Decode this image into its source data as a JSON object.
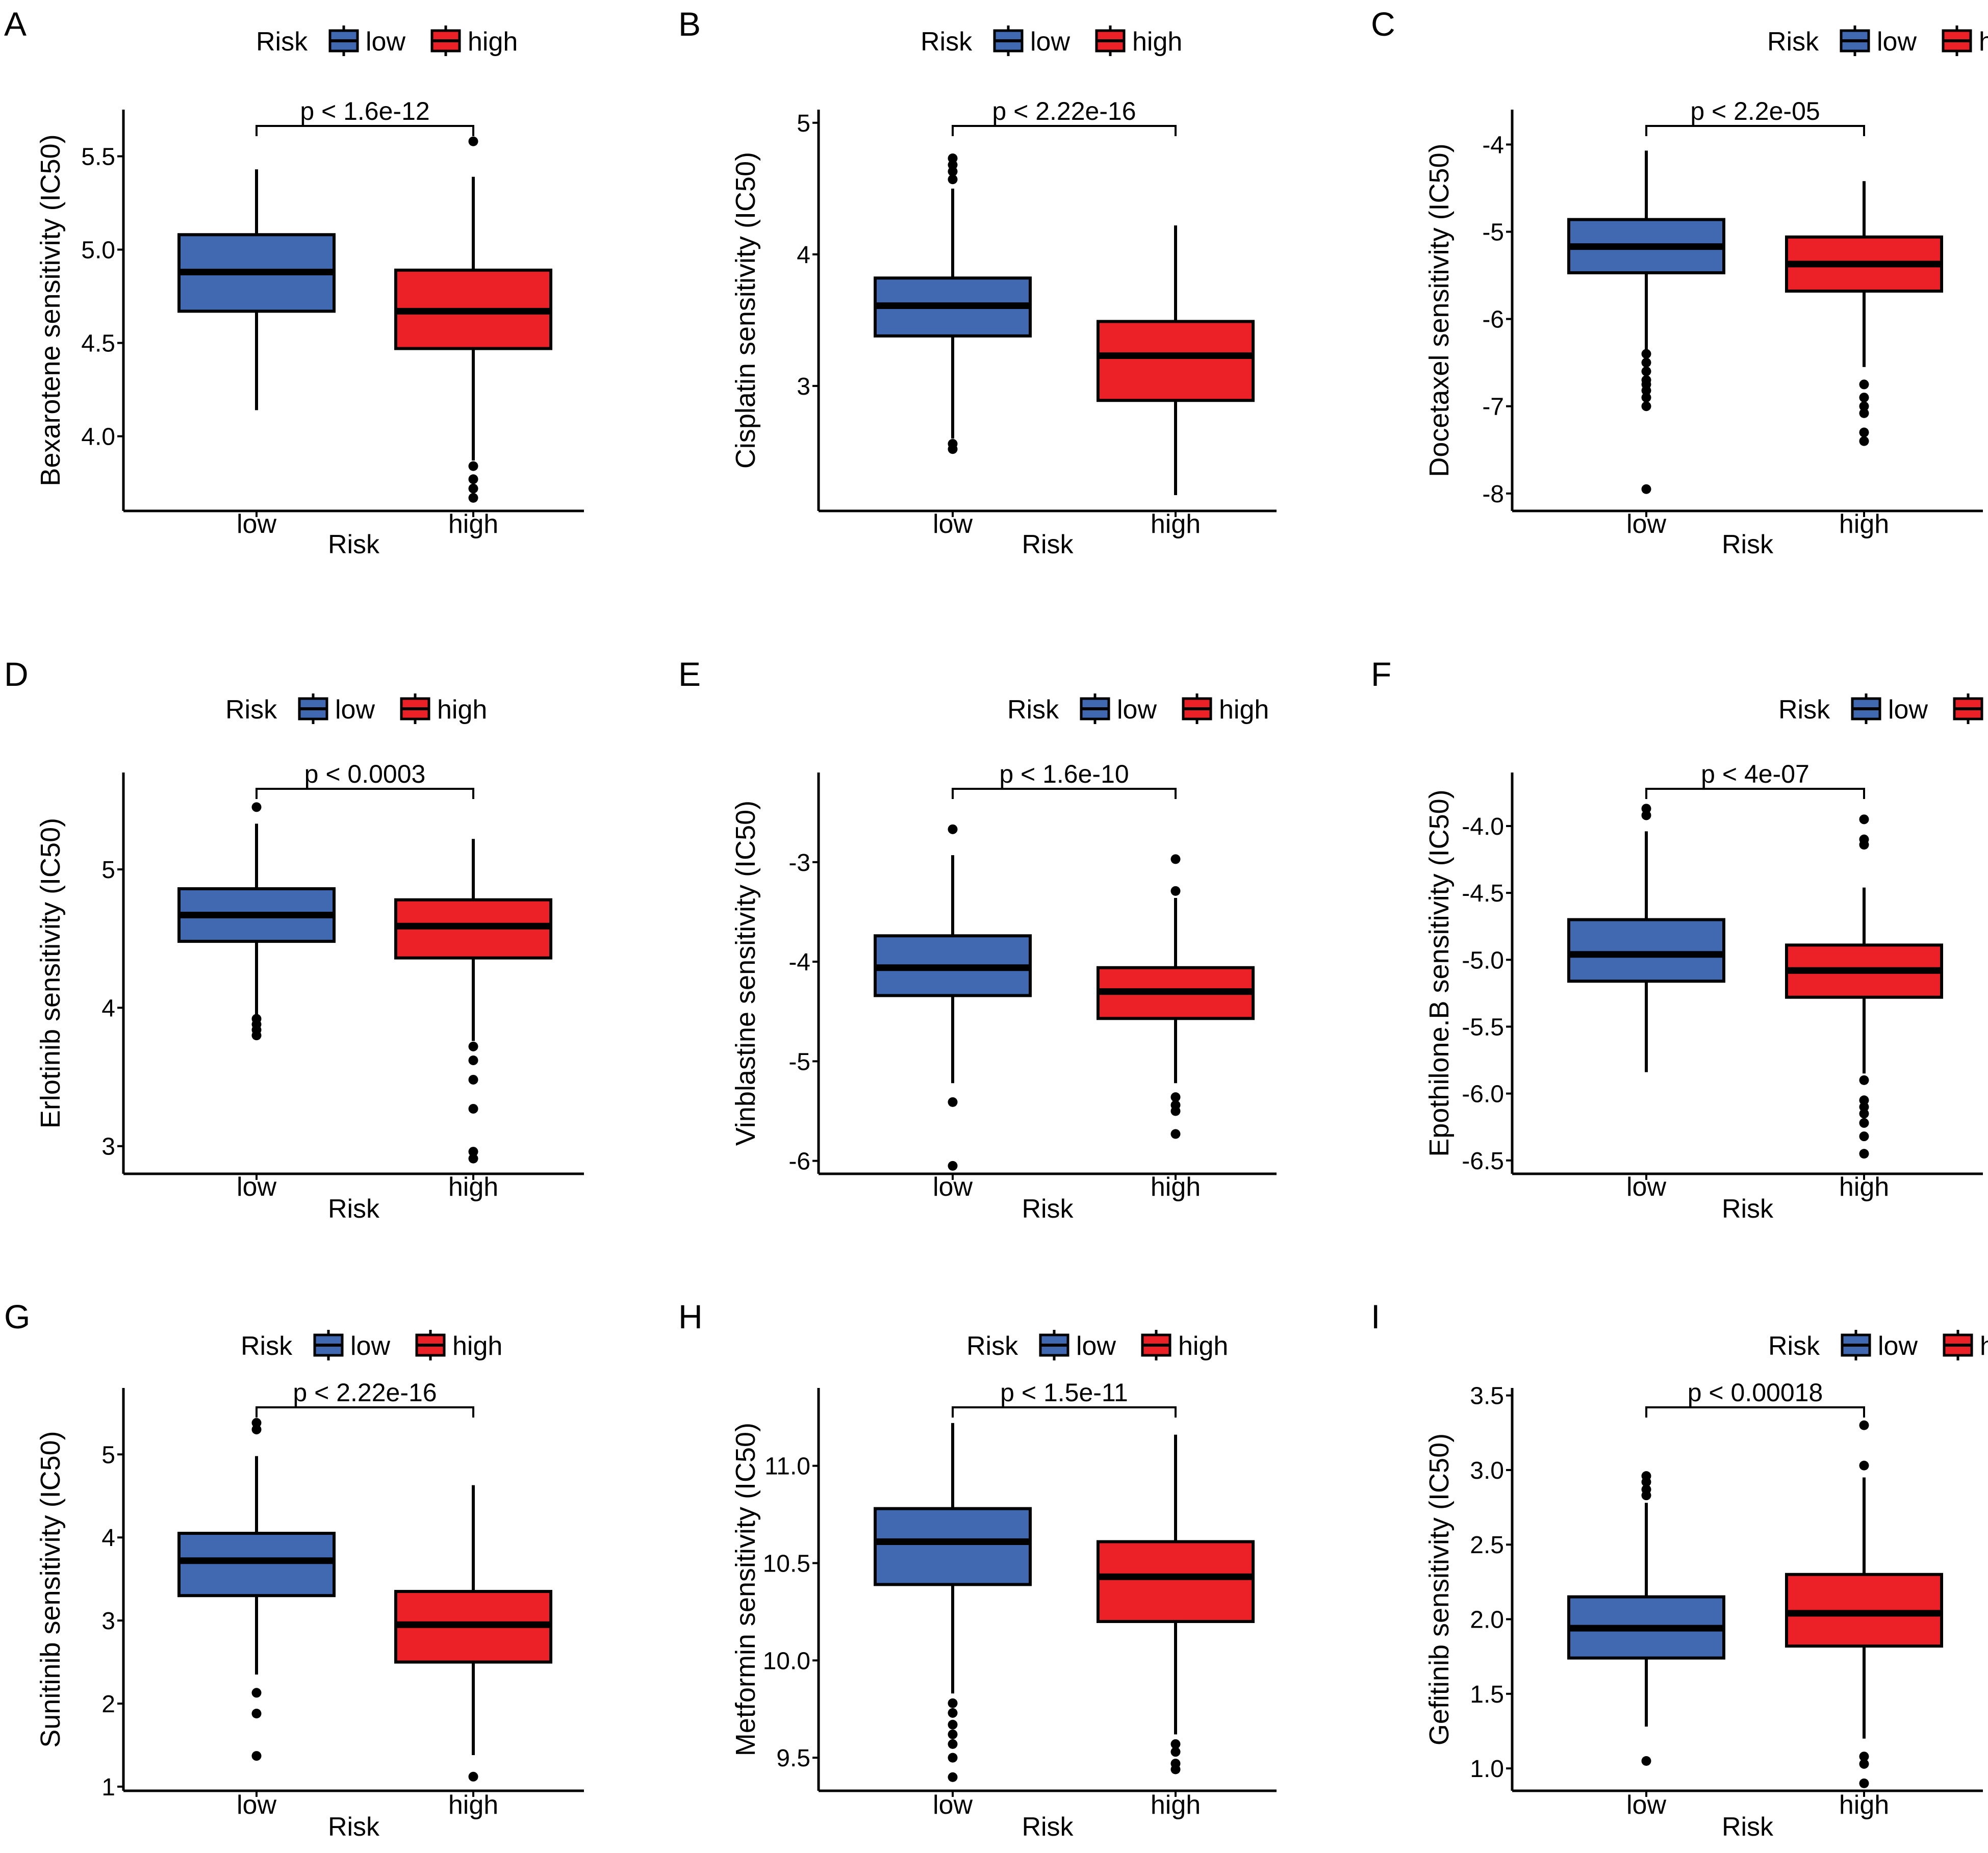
{
  "figure": {
    "background": "#ffffff"
  },
  "colors": {
    "low": "#4169b1",
    "high": "#ec2027",
    "axis": "#000000",
    "outlier": "#000000"
  },
  "legend": {
    "title": "Risk",
    "low_label": "low",
    "high_label": "high",
    "position": "top"
  },
  "chart_data": [
    {
      "panel": "A",
      "type": "boxplot",
      "ylabel": "Bexarotene sensitivity (IC50)",
      "xlabel": "Risk",
      "categories": [
        "low",
        "high"
      ],
      "ylim": [
        3.6,
        5.75
      ],
      "yticks": [
        4.0,
        4.5,
        5.0,
        5.5
      ],
      "ytick_labels": [
        "4.0",
        "4.5",
        "5.0",
        "5.5"
      ],
      "annotation": "p < 1.6e-12",
      "boxes": [
        {
          "category": "low",
          "whisker_low": 4.14,
          "q1": 4.67,
          "median": 4.88,
          "q3": 5.08,
          "whisker_high": 5.43,
          "outliers": []
        },
        {
          "category": "high",
          "whisker_low": 3.87,
          "q1": 4.47,
          "median": 4.67,
          "q3": 4.89,
          "whisker_high": 5.39,
          "outliers": [
            5.58,
            3.84,
            3.77,
            3.72,
            3.67
          ]
        }
      ]
    },
    {
      "panel": "B",
      "type": "boxplot",
      "ylabel": "Cisplatin sensitivity (IC50)",
      "xlabel": "Risk",
      "categories": [
        "low",
        "high"
      ],
      "ylim": [
        2.05,
        5.1
      ],
      "yticks": [
        3,
        4,
        5
      ],
      "ytick_labels": [
        "3",
        "4",
        "5"
      ],
      "annotation": "p < 2.22e-16",
      "boxes": [
        {
          "category": "low",
          "whisker_low": 2.6,
          "q1": 3.38,
          "median": 3.61,
          "q3": 3.82,
          "whisker_high": 4.5,
          "outliers": [
            4.73,
            4.68,
            4.63,
            4.57,
            2.56,
            2.52
          ]
        },
        {
          "category": "high",
          "whisker_low": 2.17,
          "q1": 2.89,
          "median": 3.23,
          "q3": 3.49,
          "whisker_high": 4.22,
          "outliers": []
        }
      ]
    },
    {
      "panel": "C",
      "type": "boxplot",
      "ylabel": "Docetaxel sensitivity (IC50)",
      "xlabel": "Risk",
      "categories": [
        "low",
        "high"
      ],
      "ylim": [
        -8.2,
        -3.6
      ],
      "yticks": [
        -8,
        -7,
        -6,
        -5,
        -4
      ],
      "ytick_labels": [
        "-8",
        "-7",
        "-6",
        "-5",
        "-4"
      ],
      "annotation": "p < 2.2e-05",
      "boxes": [
        {
          "category": "low",
          "whisker_low": -6.35,
          "q1": -5.47,
          "median": -5.17,
          "q3": -4.86,
          "whisker_high": -4.07,
          "outliers": [
            -6.4,
            -6.5,
            -6.6,
            -6.7,
            -6.75,
            -6.82,
            -6.9,
            -7.0,
            -7.95
          ]
        },
        {
          "category": "high",
          "whisker_low": -6.55,
          "q1": -5.68,
          "median": -5.37,
          "q3": -5.06,
          "whisker_high": -4.42,
          "outliers": [
            -6.75,
            -6.9,
            -7.0,
            -7.08,
            -7.3,
            -7.4
          ]
        }
      ]
    },
    {
      "panel": "D",
      "type": "boxplot",
      "ylabel": "Erlotinib sensitivity (IC50)",
      "xlabel": "Risk",
      "categories": [
        "low",
        "high"
      ],
      "ylim": [
        2.8,
        5.7
      ],
      "yticks": [
        3,
        4,
        5
      ],
      "ytick_labels": [
        "3",
        "4",
        "5"
      ],
      "annotation": "p < 0.0003",
      "boxes": [
        {
          "category": "low",
          "whisker_low": 3.95,
          "q1": 4.48,
          "median": 4.67,
          "q3": 4.86,
          "whisker_high": 5.33,
          "outliers": [
            5.45,
            3.92,
            3.88,
            3.84,
            3.8
          ]
        },
        {
          "category": "high",
          "whisker_low": 3.76,
          "q1": 4.36,
          "median": 4.59,
          "q3": 4.78,
          "whisker_high": 5.22,
          "outliers": [
            3.72,
            3.62,
            3.48,
            3.27,
            2.96,
            2.91
          ]
        }
      ]
    },
    {
      "panel": "E",
      "type": "boxplot",
      "ylabel": "Vinblastine sensitivity (IC50)",
      "xlabel": "Risk",
      "categories": [
        "low",
        "high"
      ],
      "ylim": [
        -6.13,
        -2.1
      ],
      "yticks": [
        -6,
        -5,
        -4,
        -3
      ],
      "ytick_labels": [
        "-6",
        "-5",
        "-4",
        "-3"
      ],
      "annotation": "p < 1.6e-10",
      "boxes": [
        {
          "category": "low",
          "whisker_low": -5.22,
          "q1": -4.34,
          "median": -4.06,
          "q3": -3.74,
          "whisker_high": -2.93,
          "outliers": [
            -2.67,
            -5.41,
            -6.05
          ]
        },
        {
          "category": "high",
          "whisker_low": -5.22,
          "q1": -4.57,
          "median": -4.3,
          "q3": -4.06,
          "whisker_high": -3.36,
          "outliers": [
            -2.97,
            -3.29,
            -5.36,
            -5.44,
            -5.5,
            -5.73
          ]
        }
      ]
    },
    {
      "panel": "F",
      "type": "boxplot",
      "ylabel": "Epothilone.B sensitivity (IC50)",
      "xlabel": "Risk",
      "categories": [
        "low",
        "high"
      ],
      "ylim": [
        -6.6,
        -3.6
      ],
      "yticks": [
        -6.5,
        -6.0,
        -5.5,
        -5.0,
        -4.5,
        -4.0
      ],
      "ytick_labels": [
        "-6.5",
        "-6.0",
        "-5.5",
        "-5.0",
        "-4.5",
        "-4.0"
      ],
      "annotation": "p < 4e-07",
      "boxes": [
        {
          "category": "low",
          "whisker_low": -5.84,
          "q1": -5.16,
          "median": -4.96,
          "q3": -4.7,
          "whisker_high": -4.04,
          "outliers": [
            -3.87,
            -3.92
          ]
        },
        {
          "category": "high",
          "whisker_low": -5.85,
          "q1": -5.28,
          "median": -5.08,
          "q3": -4.89,
          "whisker_high": -4.46,
          "outliers": [
            -3.95,
            -4.1,
            -4.14,
            -5.9,
            -6.05,
            -6.1,
            -6.15,
            -6.22,
            -6.32,
            -6.45
          ]
        }
      ]
    },
    {
      "panel": "G",
      "type": "boxplot",
      "ylabel": "Sunitinib sensitivity (IC50)",
      "xlabel": "Risk",
      "categories": [
        "low",
        "high"
      ],
      "ylim": [
        0.95,
        5.8
      ],
      "yticks": [
        1,
        2,
        3,
        4,
        5
      ],
      "ytick_labels": [
        "1",
        "2",
        "3",
        "4",
        "5"
      ],
      "annotation": "p < 2.22e-16",
      "boxes": [
        {
          "category": "low",
          "whisker_low": 2.35,
          "q1": 3.3,
          "median": 3.72,
          "q3": 4.05,
          "whisker_high": 4.98,
          "outliers": [
            5.38,
            5.3,
            2.13,
            1.88,
            1.37
          ]
        },
        {
          "category": "high",
          "whisker_low": 1.38,
          "q1": 2.5,
          "median": 2.95,
          "q3": 3.35,
          "whisker_high": 4.63,
          "outliers": [
            1.12
          ]
        }
      ]
    },
    {
      "panel": "H",
      "type": "boxplot",
      "ylabel": "Metformin sensitivity (IC50)",
      "xlabel": "Risk",
      "categories": [
        "low",
        "high"
      ],
      "ylim": [
        9.33,
        11.4
      ],
      "yticks": [
        9.5,
        10.0,
        10.5,
        11.0
      ],
      "ytick_labels": [
        "9.5",
        "10.0",
        "10.5",
        "11.0"
      ],
      "annotation": "p < 1.5e-11",
      "boxes": [
        {
          "category": "low",
          "whisker_low": 9.83,
          "q1": 10.39,
          "median": 10.61,
          "q3": 10.78,
          "whisker_high": 11.22,
          "outliers": [
            9.78,
            9.73,
            9.67,
            9.62,
            9.57,
            9.5,
            9.4
          ]
        },
        {
          "category": "high",
          "whisker_low": 9.62,
          "q1": 10.2,
          "median": 10.43,
          "q3": 10.61,
          "whisker_high": 11.16,
          "outliers": [
            9.57,
            9.53,
            9.47,
            9.44
          ]
        }
      ]
    },
    {
      "panel": "I",
      "type": "boxplot",
      "ylabel": "Gefitinib sensitivity (IC50)",
      "xlabel": "Risk",
      "categories": [
        "low",
        "high"
      ],
      "ylim": [
        0.85,
        3.55
      ],
      "yticks": [
        1.0,
        1.5,
        2.0,
        2.5,
        3.0,
        3.5
      ],
      "ytick_labels": [
        "1.0",
        "1.5",
        "2.0",
        "2.5",
        "3.0",
        "3.5"
      ],
      "annotation": "p < 0.00018",
      "boxes": [
        {
          "category": "low",
          "whisker_low": 1.28,
          "q1": 1.74,
          "median": 1.94,
          "q3": 2.15,
          "whisker_high": 2.78,
          "outliers": [
            2.96,
            2.92,
            2.87,
            2.83,
            1.05
          ]
        },
        {
          "category": "high",
          "whisker_low": 1.2,
          "q1": 1.82,
          "median": 2.04,
          "q3": 2.3,
          "whisker_high": 2.95,
          "outliers": [
            3.3,
            3.03,
            1.08,
            1.03,
            0.9
          ]
        }
      ]
    }
  ]
}
